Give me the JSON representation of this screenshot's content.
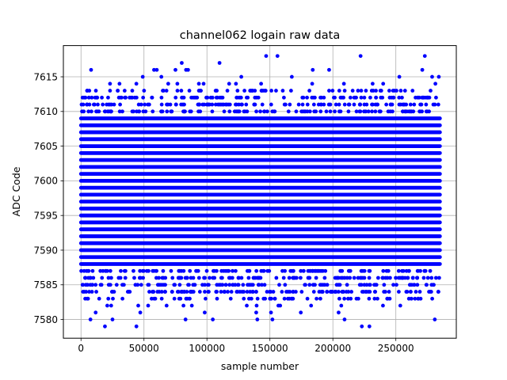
{
  "chart_data": {
    "type": "scatter",
    "title": "channel062 logain raw data",
    "xlabel": "sample number",
    "ylabel": "ADC Code",
    "xlim": [
      -14000,
      298000
    ],
    "ylim": [
      7577.3,
      7619.5
    ],
    "x_ticks": [
      0,
      50000,
      100000,
      150000,
      200000,
      250000
    ],
    "y_ticks": [
      7580,
      7585,
      7590,
      7595,
      7600,
      7605,
      7610,
      7615
    ],
    "grid": true,
    "marker_color": "#0000ff",
    "x_range": [
      0,
      285000
    ],
    "dense_band": [
      7584,
      7612
    ],
    "sparse_bands": [
      7580,
      7581,
      7582,
      7583,
      7613,
      7614,
      7615,
      7616
    ],
    "extreme_points": [
      {
        "x": 8000,
        "y": 7616
      },
      {
        "x": 19000,
        "y": 7579
      },
      {
        "x": 25000,
        "y": 7580
      },
      {
        "x": 44000,
        "y": 7579
      },
      {
        "x": 58000,
        "y": 7616
      },
      {
        "x": 80000,
        "y": 7617
      },
      {
        "x": 83000,
        "y": 7580
      },
      {
        "x": 85000,
        "y": 7616
      },
      {
        "x": 110000,
        "y": 7617
      },
      {
        "x": 140000,
        "y": 7580
      },
      {
        "x": 147000,
        "y": 7618
      },
      {
        "x": 152000,
        "y": 7580
      },
      {
        "x": 156000,
        "y": 7618
      },
      {
        "x": 197000,
        "y": 7616
      },
      {
        "x": 222000,
        "y": 7618
      },
      {
        "x": 223000,
        "y": 7579
      },
      {
        "x": 229000,
        "y": 7579
      },
      {
        "x": 273000,
        "y": 7618
      },
      {
        "x": 271000,
        "y": 7616
      }
    ]
  }
}
